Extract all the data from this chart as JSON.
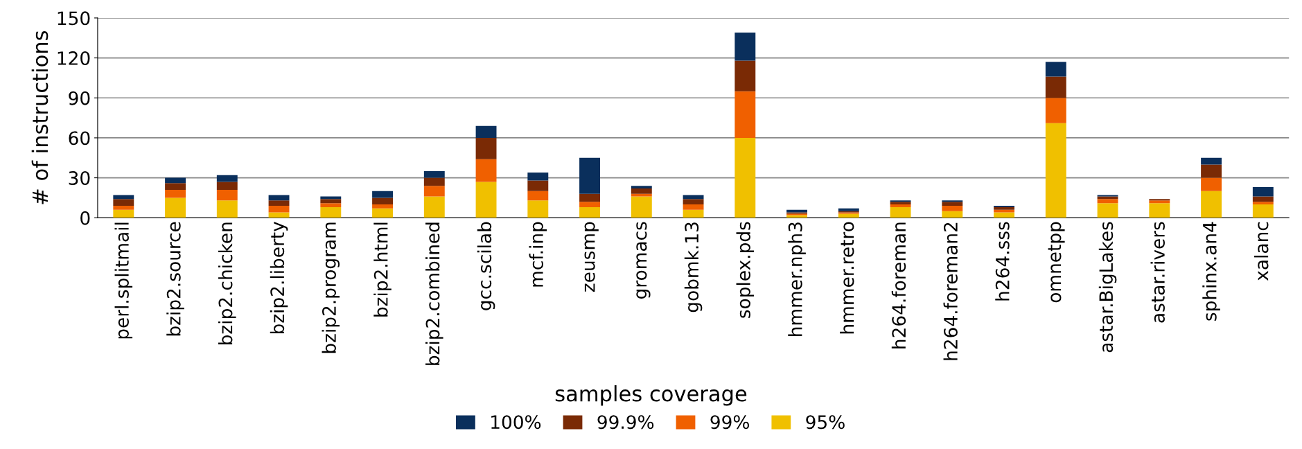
{
  "chart_data": {
    "type": "bar",
    "stacked": true,
    "ylabel": "# of instructions",
    "legend_title": "samples coverage",
    "legend": "bottom",
    "grid": "y",
    "categories": [
      "perl.splitmail",
      "bzip2.source",
      "bzip2.chicken",
      "bzip2.liberty",
      "bzip2.program",
      "bzip2.html",
      "bzip2.combined",
      "gcc.scilab",
      "mcf.inp",
      "zeusmp",
      "gromacs",
      "gobmk.13",
      "soplex.pds",
      "hmmer.nph3",
      "hmmer.retro",
      "h264.foreman",
      "h264.foreman2",
      "h264.sss",
      "omnetpp",
      "astar.BigLakes",
      "astar.rivers",
      "sphinx.an4",
      "xalanc"
    ],
    "ylim": [
      0,
      150
    ],
    "yticks": [
      0,
      30,
      60,
      90,
      120,
      150
    ],
    "series": [
      {
        "name": "95%",
        "color": "#f0c000",
        "values": [
          6,
          15,
          13,
          4,
          8,
          7,
          16,
          27,
          13,
          8,
          16,
          6,
          60,
          2,
          3,
          8,
          5,
          4,
          71,
          11,
          11,
          20,
          10
        ]
      },
      {
        "name": "99%",
        "color": "#f06000",
        "values": [
          3,
          6,
          8,
          5,
          3,
          3,
          8,
          17,
          7,
          4,
          2,
          4,
          35,
          1,
          1,
          2,
          4,
          2,
          19,
          3,
          2,
          10,
          2
        ]
      },
      {
        "name": "99.9%",
        "color": "#7a2a05",
        "values": [
          5,
          5,
          6,
          4,
          3,
          5,
          6,
          16,
          8,
          6,
          4,
          4,
          23,
          1,
          1,
          2,
          3,
          2,
          16,
          2,
          1,
          10,
          4
        ]
      },
      {
        "name": "100%",
        "color": "#0a2f5c",
        "values": [
          3,
          4,
          5,
          4,
          2,
          5,
          5,
          9,
          6,
          27,
          2,
          3,
          21,
          2,
          2,
          1,
          1,
          1,
          11,
          1,
          0,
          5,
          7
        ]
      }
    ]
  }
}
